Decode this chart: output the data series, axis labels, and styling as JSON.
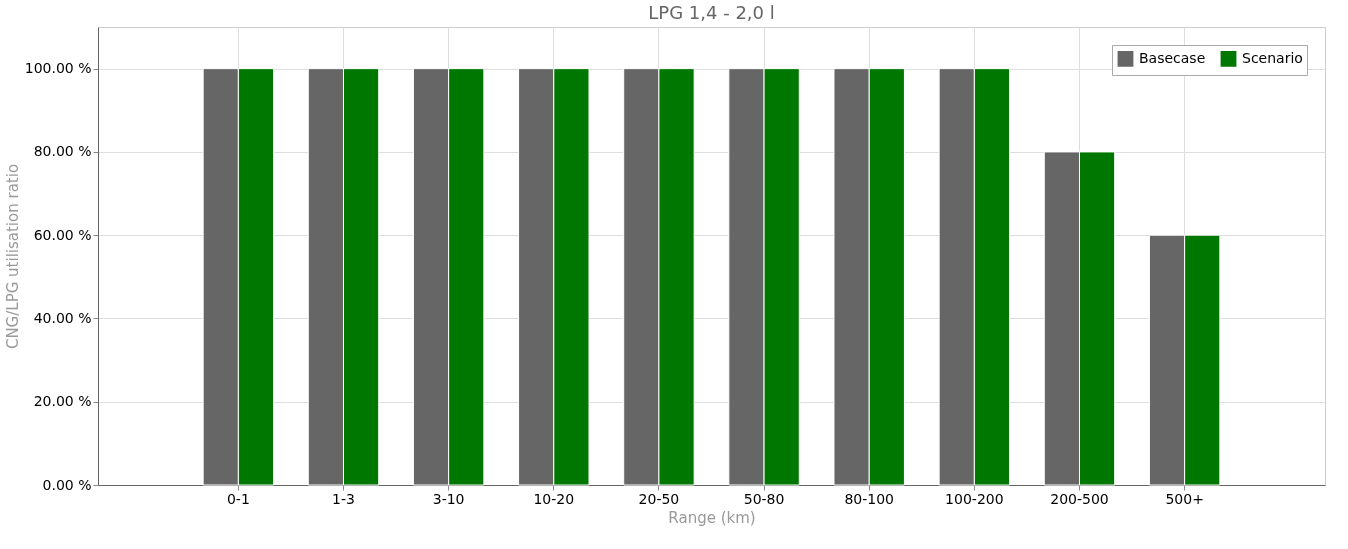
{
  "chart_data": {
    "type": "bar",
    "title": "LPG 1,4 - 2,0 l",
    "xlabel": "Range (km)",
    "ylabel": "CNG/LPG utilisation ratio",
    "categories": [
      "0-1",
      "1-3",
      "3-10",
      "10-20",
      "20-50",
      "50-80",
      "80-100",
      "100-200",
      "200-500",
      "500+"
    ],
    "series": [
      {
        "name": "Basecase",
        "color": "#666666",
        "values": [
          100,
          100,
          100,
          100,
          100,
          100,
          100,
          100,
          80,
          60
        ]
      },
      {
        "name": "Scenario",
        "color": "#007700",
        "values": [
          100,
          100,
          100,
          100,
          100,
          100,
          100,
          100,
          80,
          60
        ]
      }
    ],
    "ylim": [
      0,
      110
    ],
    "yticks": [
      {
        "value": 0,
        "label": "0.00 %"
      },
      {
        "value": 20,
        "label": "20.00 %"
      },
      {
        "value": 40,
        "label": "40.00 %"
      },
      {
        "value": 60,
        "label": "60.00 %"
      },
      {
        "value": 80,
        "label": "80.00 %"
      },
      {
        "value": 100,
        "label": "100.00 %"
      }
    ],
    "grid": true,
    "legend": "top right"
  }
}
